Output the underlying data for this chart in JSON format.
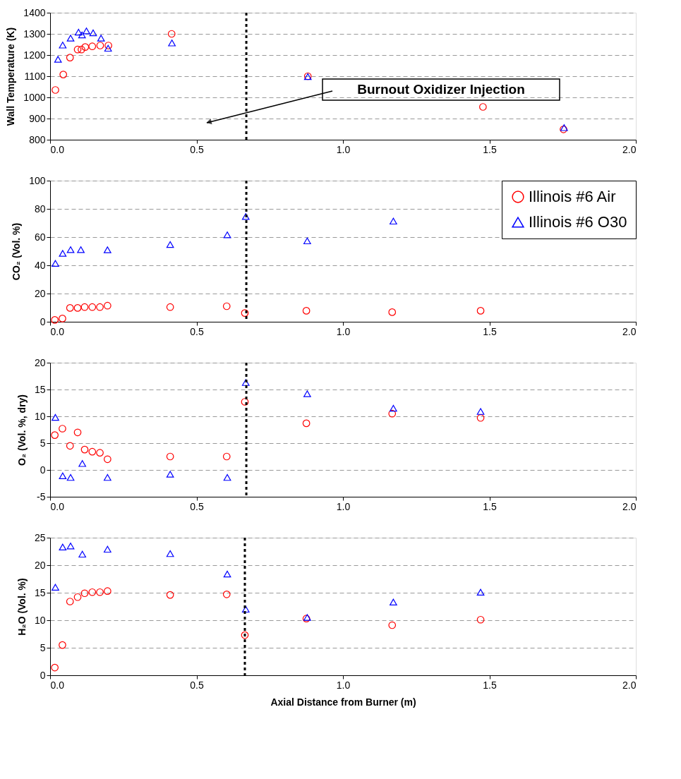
{
  "chart_data": [
    {
      "type": "scatter",
      "ylabel": "Wall Temperature (K)",
      "xlim": [
        0,
        2
      ],
      "xticks": [
        {
          "value": 0,
          "label": "0.0"
        },
        {
          "value": 0.5,
          "label": "0.5"
        },
        {
          "value": 1,
          "label": "1.0"
        },
        {
          "value": 1.5,
          "label": "1.5"
        },
        {
          "value": 2,
          "label": "2.0"
        }
      ],
      "ylim": [
        800,
        1400
      ],
      "yticks": [
        800,
        900,
        1000,
        1100,
        1200,
        1300,
        1400
      ],
      "grid": "y",
      "ref_lines": [
        {
          "axis": "x",
          "value": 0.67,
          "color": "#000000",
          "line_style": "dotted"
        }
      ],
      "annotations": [
        "Burnout Oxidizer Injection"
      ],
      "series": [
        {
          "color": "#ff0000",
          "marker": "circle",
          "x": [
            0.018,
            0.045,
            0.068,
            0.094,
            0.107,
            0.12,
            0.144,
            0.171,
            0.199,
            0.415,
            0.88,
            1.478,
            1.753
          ],
          "values": [
            1035,
            1108,
            1188,
            1226,
            1226,
            1238,
            1241,
            1245,
            1245,
            1300,
            1100,
            955,
            849
          ]
        },
        {
          "color": "#0000ff",
          "marker": "triangle",
          "x": [
            0.027,
            0.043,
            0.07,
            0.097,
            0.109,
            0.124,
            0.147,
            0.174,
            0.198,
            0.416,
            0.88,
            1.755
          ],
          "values": [
            1180,
            1247,
            1280,
            1308,
            1295,
            1314,
            1305,
            1280,
            1232,
            1257,
            1098,
            857
          ]
        }
      ]
    },
    {
      "type": "scatter",
      "ylabel": "CO₂ (Vol. %)",
      "xlim": [
        0,
        2
      ],
      "xticks": [
        {
          "value": 0,
          "label": "0.0"
        },
        {
          "value": 0.5,
          "label": "0.5"
        },
        {
          "value": 1,
          "label": "1.0"
        },
        {
          "value": 1.5,
          "label": "1.5"
        },
        {
          "value": 2,
          "label": "2.0"
        }
      ],
      "ylim": [
        0,
        100
      ],
      "yticks": [
        0,
        20,
        40,
        60,
        80,
        100
      ],
      "grid": "y",
      "legend": "top right",
      "ref_lines": [
        {
          "axis": "x",
          "value": 0.67,
          "color": "#000000",
          "line_style": "dotted"
        }
      ],
      "series": [
        {
          "name": "Illinois #6 Air",
          "color": "#ff0000",
          "marker": "circle",
          "x": [
            0.016,
            0.042,
            0.068,
            0.094,
            0.118,
            0.144,
            0.17,
            0.196,
            0.41,
            0.603,
            0.665,
            0.875,
            1.168,
            1.47
          ],
          "values": [
            1.3,
            2.3,
            9.8,
            9.8,
            10.4,
            10.4,
            10.4,
            11.4,
            10.4,
            11,
            6.2,
            7.8,
            6.8,
            7.8
          ]
        },
        {
          "name": "Illinois #6 O30",
          "color": "#0000ff",
          "marker": "triangle",
          "x": [
            0.018,
            0.043,
            0.07,
            0.105,
            0.196,
            0.41,
            0.605,
            0.668,
            0.878,
            1.172
          ],
          "values": [
            41.4,
            48.5,
            51.1,
            51.1,
            51,
            54.7,
            61.6,
            74.6,
            57.3,
            71.3
          ]
        }
      ]
    },
    {
      "type": "scatter",
      "ylabel": "O₂ (Vol. %, dry)",
      "xlim": [
        0,
        2
      ],
      "xticks": [
        {
          "value": 0,
          "label": "0.0"
        },
        {
          "value": 0.5,
          "label": "0.5"
        },
        {
          "value": 1,
          "label": "1.0"
        },
        {
          "value": 1.5,
          "label": "1.5"
        },
        {
          "value": 2,
          "label": "2.0"
        }
      ],
      "ylim": [
        -5,
        20
      ],
      "yticks": [
        -5,
        0,
        5,
        10,
        15,
        20
      ],
      "grid": "y",
      "ref_lines": [
        {
          "axis": "x",
          "value": 0.67,
          "color": "#000000",
          "line_style": "dotted"
        }
      ],
      "series": [
        {
          "color": "#ff0000",
          "marker": "circle",
          "x": [
            0.016,
            0.042,
            0.068,
            0.094,
            0.118,
            0.144,
            0.17,
            0.196,
            0.41,
            0.603,
            0.665,
            0.875,
            1.168,
            1.47
          ],
          "values": [
            6.5,
            7.7,
            4.5,
            7.0,
            3.8,
            3.4,
            3.2,
            2.0,
            2.5,
            2.5,
            12.7,
            8.7,
            10.5,
            9.7
          ]
        },
        {
          "color": "#0000ff",
          "marker": "triangle",
          "x": [
            0.018,
            0.043,
            0.07,
            0.11,
            0.196,
            0.41,
            0.605,
            0.668,
            0.878,
            1.172,
            1.47
          ],
          "values": [
            9.8,
            -1.1,
            -1.4,
            1.2,
            -1.4,
            -0.8,
            -1.4,
            16.3,
            14.2,
            11.5,
            10.9
          ]
        }
      ]
    },
    {
      "type": "scatter",
      "xlabel": "Axial Distance from Burner (m)",
      "ylabel": "H₂O (Vol. %)",
      "xlim": [
        0,
        2
      ],
      "xticks": [
        {
          "value": 0,
          "label": "0.0"
        },
        {
          "value": 0.5,
          "label": "0.5"
        },
        {
          "value": 1,
          "label": "1.0"
        },
        {
          "value": 1.5,
          "label": "1.5"
        },
        {
          "value": 2,
          "label": "2.0"
        }
      ],
      "ylim": [
        0,
        25
      ],
      "yticks": [
        0,
        5,
        10,
        15,
        20,
        25
      ],
      "grid": "y",
      "ref_lines": [
        {
          "axis": "x",
          "value": 0.665,
          "color": "#000000",
          "line_style": "dotted"
        }
      ],
      "series": [
        {
          "color": "#ff0000",
          "marker": "circle",
          "x": [
            0.016,
            0.042,
            0.068,
            0.094,
            0.118,
            0.144,
            0.17,
            0.196,
            0.41,
            0.603,
            0.665,
            0.875,
            1.168,
            1.47
          ],
          "values": [
            1.4,
            5.5,
            13.4,
            14.2,
            14.9,
            15.1,
            15.1,
            15.3,
            14.6,
            14.7,
            7.3,
            10.3,
            9.1,
            10.1
          ]
        },
        {
          "color": "#0000ff",
          "marker": "triangle",
          "x": [
            0.018,
            0.043,
            0.07,
            0.11,
            0.196,
            0.41,
            0.605,
            0.668,
            0.878,
            1.172,
            1.47
          ],
          "values": [
            16.0,
            23.3,
            23.5,
            22.0,
            22.9,
            22.1,
            18.4,
            12.0,
            10.5,
            13.3,
            15.1
          ]
        }
      ]
    }
  ]
}
